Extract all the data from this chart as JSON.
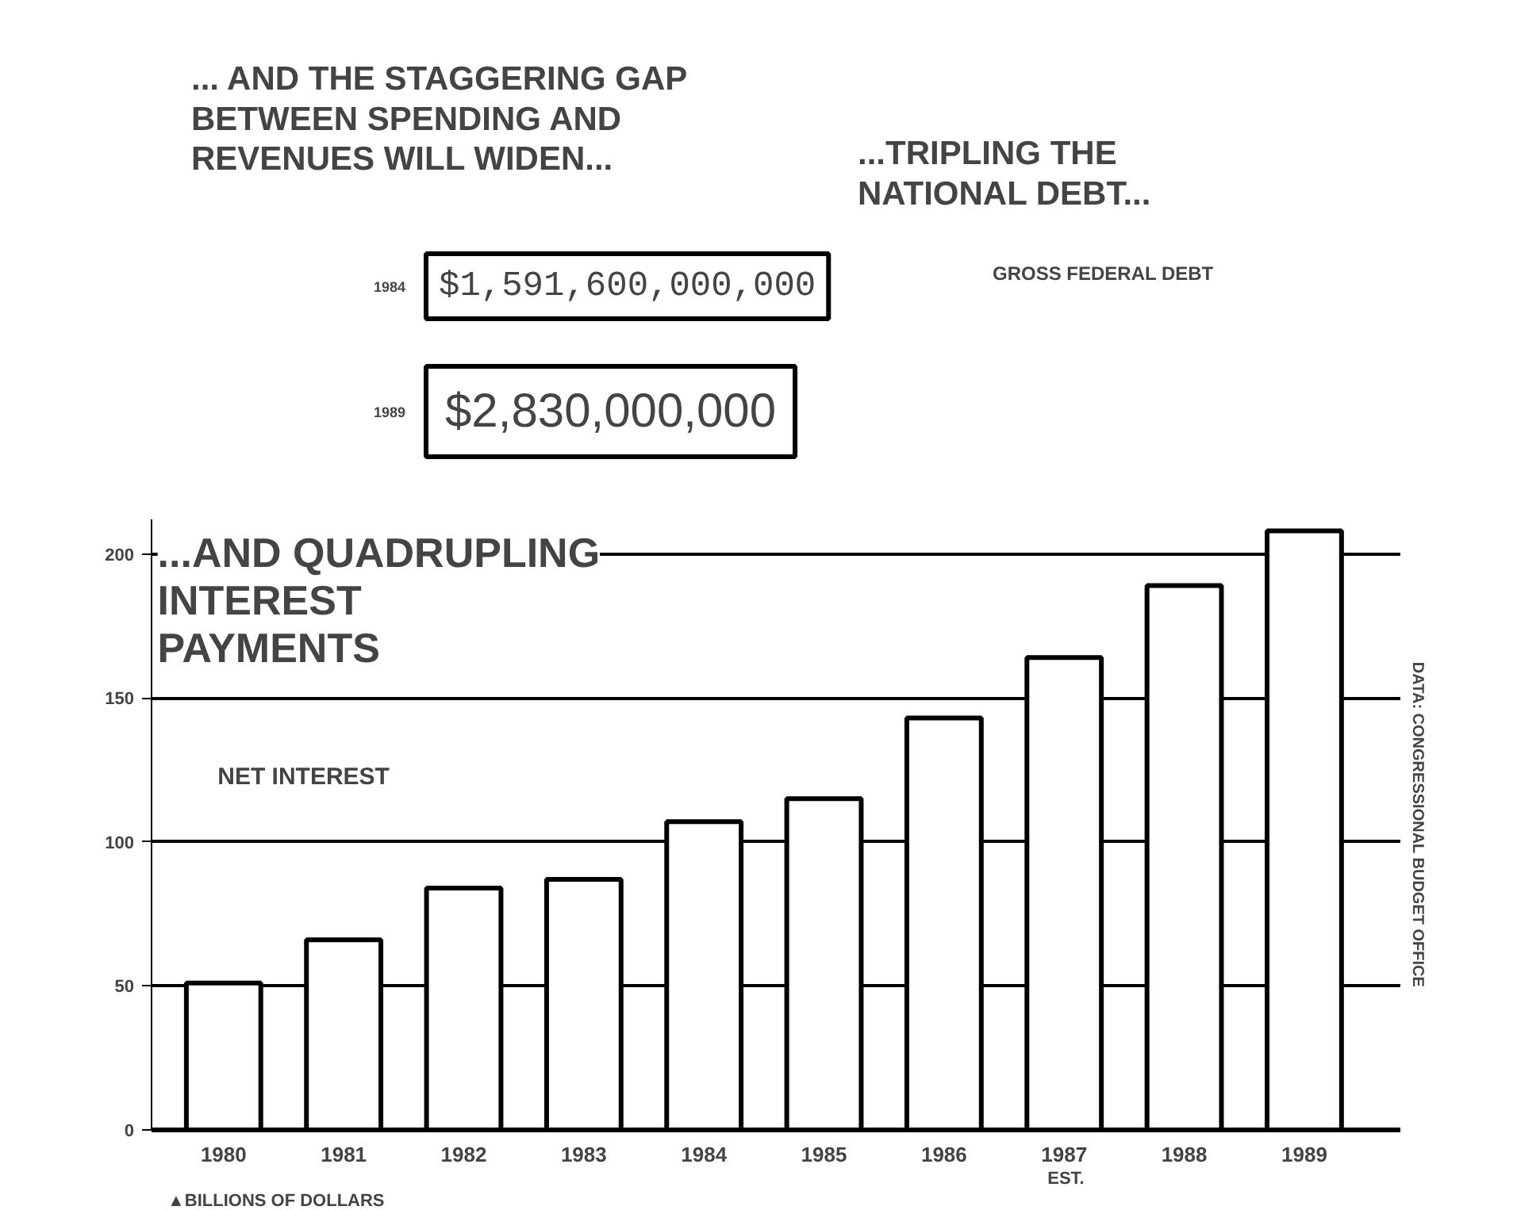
{
  "chart_data": [
    {
      "type": "other",
      "title": "...TRIPLING THE\nNATIONAL DEBT...",
      "subtitle": "GROSS FEDERAL DEBT",
      "annotations": [
        "... AND THE STAGGERING GAP\nBETWEEN SPENDING AND\nREVENUES WILL WIDEN..."
      ],
      "categories": [
        "1984",
        "1989"
      ],
      "values": [
        1591600000000,
        2830000000
      ],
      "value_labels": [
        "$1,591,600,000,000",
        "$2,830,000,000"
      ],
      "color": "#ffffff"
    },
    {
      "type": "bar",
      "title": "...AND QUADRUPLING\nINTEREST\nPAYMENTS",
      "subtitle": "NET INTEREST",
      "categories": [
        "1980",
        "1981",
        "1982",
        "1983",
        "1984",
        "1985",
        "1986",
        "1987",
        "1988",
        "1989"
      ],
      "values": [
        51,
        66,
        84,
        87,
        107,
        115,
        143,
        164,
        189,
        208
      ],
      "color": "#ffffff",
      "ylim": [
        0,
        212
      ],
      "yticks": [
        0,
        50,
        100,
        150,
        200
      ],
      "grid": "y",
      "annotations": [
        "EST.",
        "▲BILLIONS OF DOLLARS",
        "DATA: CONGRESSIONAL BUDGET OFFICE"
      ]
    }
  ]
}
